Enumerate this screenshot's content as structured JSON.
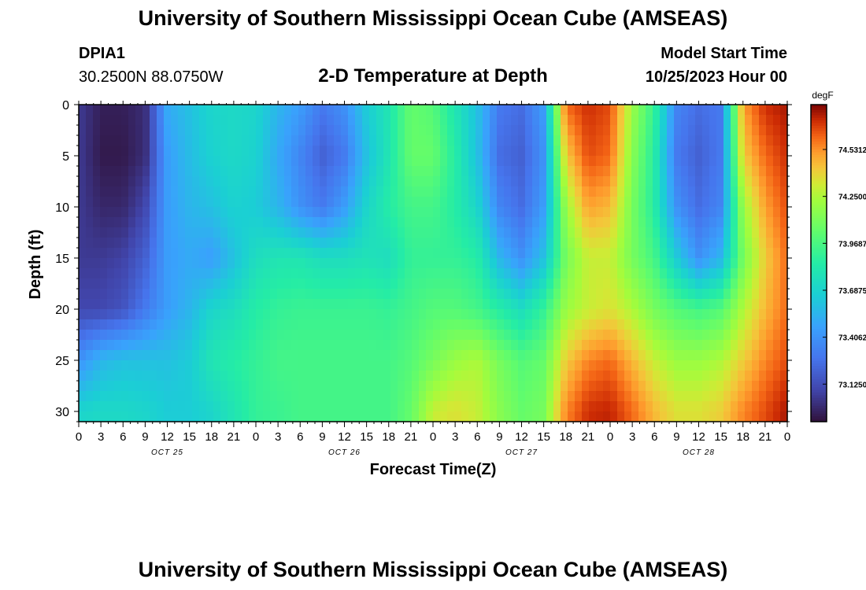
{
  "header": {
    "title": "University of Southern Mississippi Ocean Cube (AMSEAS)",
    "station": "DPIA1",
    "location": "30.2500N  88.0750W",
    "subtitle": "2-D Temperature at Depth",
    "model_start_label": "Model Start Time",
    "model_start_value": "10/25/2023 Hour 00"
  },
  "footer": {
    "title": "University of Southern Mississippi Ocean Cube (AMSEAS)"
  },
  "chart_data": {
    "type": "heatmap",
    "xlabel": "Forecast Time(Z)",
    "ylabel": "Depth (ft)",
    "x_tick_labels": [
      "0",
      "3",
      "6",
      "9",
      "12",
      "15",
      "18",
      "21",
      "0",
      "3",
      "6",
      "9",
      "12",
      "15",
      "18",
      "21",
      "0",
      "3",
      "6",
      "9",
      "12",
      "15",
      "18",
      "21",
      "0",
      "3",
      "6",
      "9",
      "12",
      "15",
      "18",
      "21",
      "0"
    ],
    "day_labels": [
      "OCT 25",
      "OCT 26",
      "OCT 27",
      "OCT 28"
    ],
    "x_range_hours": [
      0,
      96
    ],
    "y_ticks": [
      0,
      5,
      10,
      15,
      20,
      25,
      30
    ],
    "y_range_ft": [
      0,
      31
    ],
    "y_inverted": true,
    "colorbar": {
      "unit": "degF",
      "tick_labels": [
        "74.5312",
        "74.2500",
        "73.9687",
        "73.6875",
        "73.4062",
        "73.1250"
      ],
      "tick_values": [
        74.5312,
        74.25,
        73.9687,
        73.6875,
        73.4062,
        73.125
      ],
      "range": [
        72.9,
        74.8
      ],
      "colormap": "turbo"
    },
    "depth_profiles_ft": [
      0,
      5,
      10,
      15,
      20,
      25,
      30
    ],
    "time_hours": [
      0,
      3,
      6,
      9,
      12,
      15,
      18,
      21,
      24,
      27,
      30,
      33,
      36,
      39,
      42,
      45,
      48,
      51,
      54,
      57,
      60,
      63,
      66,
      69,
      72,
      75,
      78,
      81,
      84,
      87,
      90,
      93,
      96
    ],
    "temperature_degF": [
      [
        73.05,
        72.95,
        72.95,
        73.0,
        73.5,
        73.6,
        73.7,
        73.72,
        73.7,
        73.55,
        73.45,
        73.3,
        73.4,
        73.65,
        73.8,
        74.05,
        74.0,
        73.8,
        73.6,
        73.3,
        73.25,
        73.45,
        74.6,
        74.7,
        74.65,
        74.2,
        73.9,
        73.35,
        73.25,
        73.3,
        74.5,
        74.7,
        74.75
      ],
      [
        73.05,
        72.93,
        72.93,
        73.0,
        73.45,
        73.58,
        73.68,
        73.72,
        73.68,
        73.5,
        73.35,
        73.2,
        73.3,
        73.6,
        73.8,
        74.05,
        74.05,
        73.85,
        73.6,
        73.25,
        73.2,
        73.4,
        74.4,
        74.65,
        74.6,
        74.15,
        73.85,
        73.3,
        73.2,
        73.3,
        74.4,
        74.6,
        74.7
      ],
      [
        73.05,
        72.98,
        72.98,
        73.1,
        73.45,
        73.55,
        73.6,
        73.68,
        73.65,
        73.55,
        73.4,
        73.3,
        73.45,
        73.7,
        73.85,
        73.95,
        73.95,
        73.85,
        73.7,
        73.35,
        73.25,
        73.45,
        74.2,
        74.5,
        74.45,
        74.1,
        73.85,
        73.4,
        73.25,
        73.35,
        74.2,
        74.5,
        74.65
      ],
      [
        73.05,
        73.05,
        73.08,
        73.2,
        73.45,
        73.5,
        73.45,
        73.6,
        73.75,
        73.8,
        73.8,
        73.75,
        73.75,
        73.78,
        73.75,
        73.9,
        73.9,
        73.9,
        73.85,
        73.55,
        73.4,
        73.6,
        74.1,
        74.3,
        74.3,
        74.1,
        73.95,
        73.65,
        73.4,
        73.55,
        74.1,
        74.4,
        74.6
      ],
      [
        73.1,
        73.1,
        73.15,
        73.3,
        73.45,
        73.55,
        73.7,
        73.75,
        73.85,
        73.9,
        73.92,
        73.92,
        73.92,
        73.92,
        73.9,
        73.95,
        74.0,
        74.0,
        73.95,
        73.85,
        73.75,
        73.9,
        74.2,
        74.3,
        74.35,
        74.25,
        74.1,
        74.0,
        73.95,
        74.0,
        74.25,
        74.45,
        74.6
      ],
      [
        73.4,
        73.55,
        73.6,
        73.6,
        73.6,
        73.65,
        73.8,
        73.85,
        73.9,
        73.95,
        73.95,
        73.95,
        73.95,
        73.95,
        73.95,
        74.0,
        74.1,
        74.2,
        74.25,
        74.1,
        74.0,
        74.05,
        74.4,
        74.55,
        74.6,
        74.45,
        74.3,
        74.2,
        74.2,
        74.25,
        74.4,
        74.55,
        74.65
      ],
      [
        73.7,
        73.72,
        73.72,
        73.7,
        73.65,
        73.65,
        73.7,
        73.8,
        73.9,
        73.92,
        73.95,
        73.95,
        73.95,
        73.95,
        73.95,
        74.05,
        74.3,
        74.35,
        74.3,
        74.15,
        74.05,
        74.1,
        74.55,
        74.7,
        74.72,
        74.6,
        74.45,
        74.35,
        74.35,
        74.4,
        74.55,
        74.65,
        74.75
      ]
    ]
  }
}
